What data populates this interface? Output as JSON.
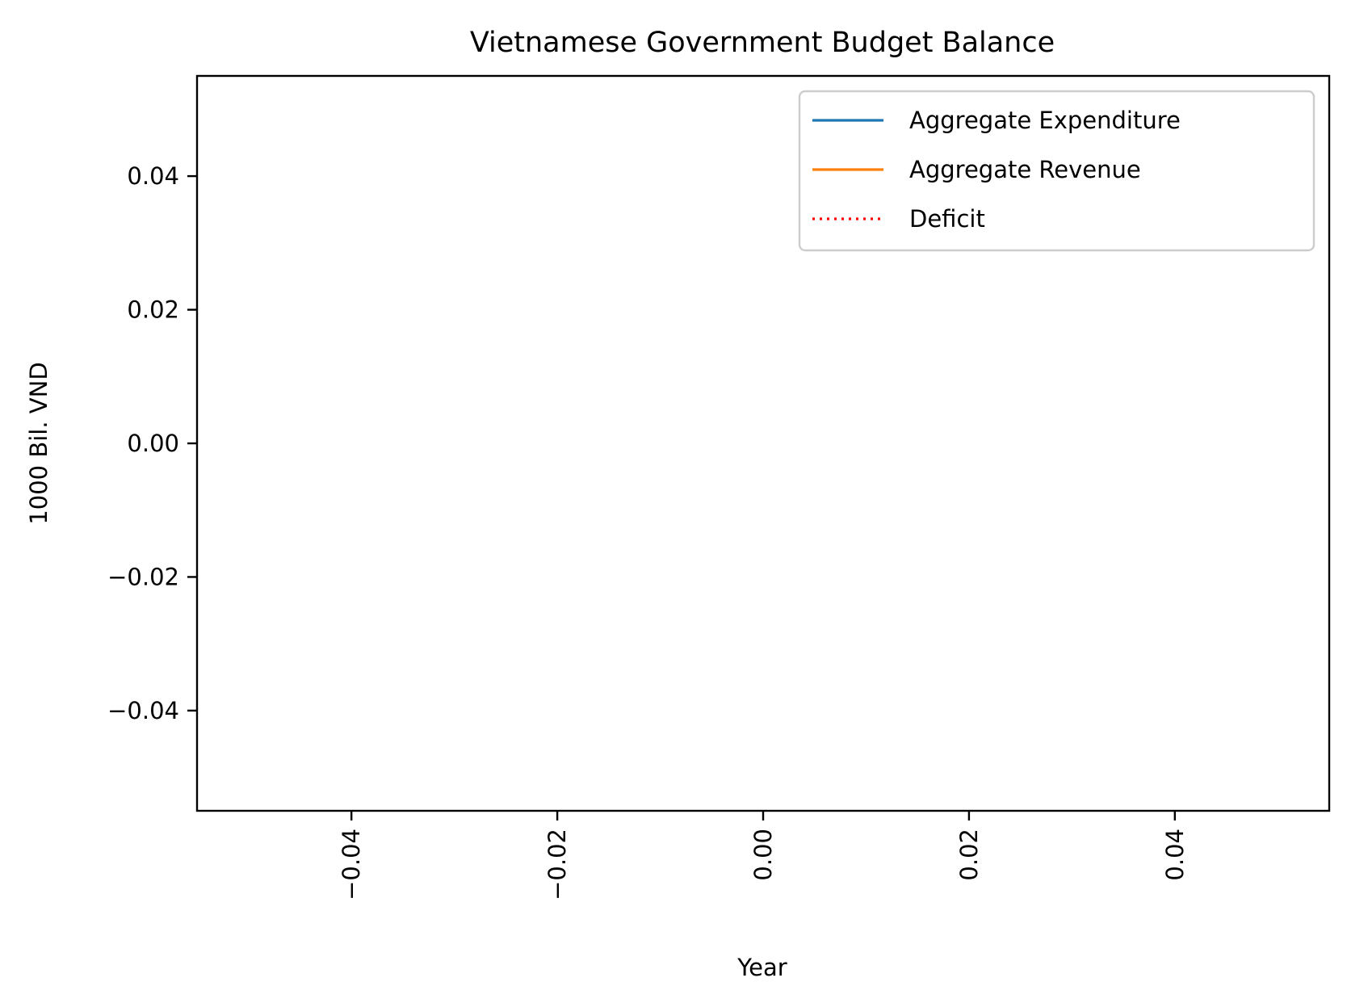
{
  "chart_data": {
    "type": "line",
    "title": "Vietnamese Government Budget Balance",
    "xlabel": "Year",
    "ylabel": "1000 Bil. VND",
    "xlim": [
      -0.055,
      0.055
    ],
    "ylim": [
      -0.055,
      0.055
    ],
    "x_ticks": [
      -0.04,
      -0.02,
      0.0,
      0.02,
      0.04
    ],
    "y_ticks": [
      -0.04,
      -0.02,
      0.0,
      0.02,
      0.04
    ],
    "x_tick_labels": [
      "−0.04",
      "−0.02",
      "0.00",
      "0.02",
      "0.04"
    ],
    "y_tick_labels": [
      "−0.04",
      "−0.02",
      "0.00",
      "0.02",
      "0.04"
    ],
    "x_tick_rotation": "vertical",
    "grid": false,
    "legend_position": "top-right",
    "series": [
      {
        "name": "Aggregate Expenditure",
        "color": "#1f77b4",
        "linestyle": "solid",
        "x": [],
        "y": []
      },
      {
        "name": "Aggregate Revenue",
        "color": "#ff7f0e",
        "linestyle": "solid",
        "x": [],
        "y": []
      },
      {
        "name": "Deficit",
        "color": "#ff0000",
        "linestyle": "dotted",
        "x": [],
        "y": []
      }
    ]
  }
}
